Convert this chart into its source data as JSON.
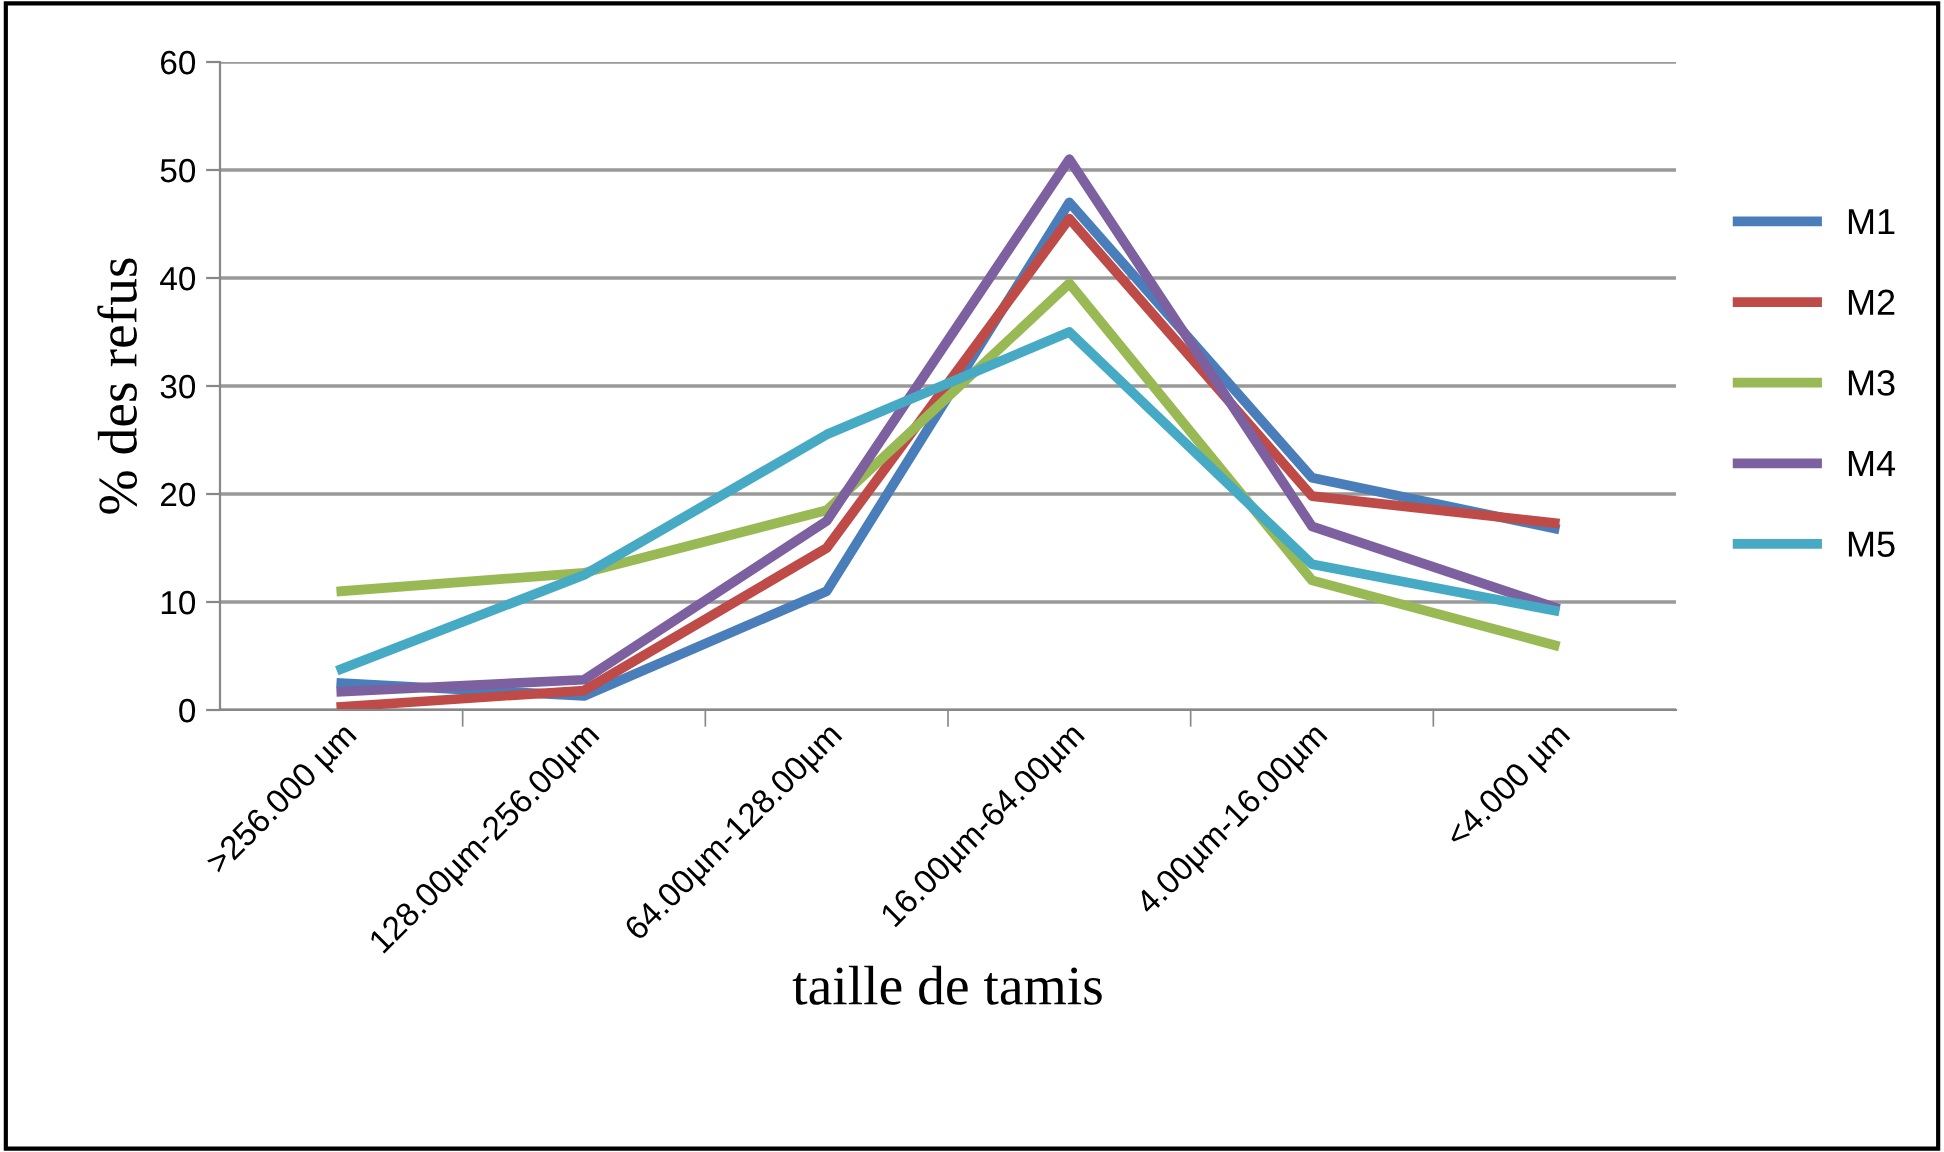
{
  "chart_data": {
    "type": "line",
    "xlabel": "taille de tamis",
    "ylabel": "% des refus",
    "categories": [
      ">256.000 µm",
      "128.00µm-256.00µm",
      "64.00µm-128.00µm",
      "16.00µm-64.00µm",
      "4.00µm-16.00µm",
      "<4.000 µm"
    ],
    "series": [
      {
        "name": "M1",
        "color": "#4a7ebb",
        "values": [
          2.5,
          1.3,
          11,
          47,
          21.5,
          16.8
        ]
      },
      {
        "name": "M2",
        "color": "#be4b48",
        "values": [
          0.3,
          1.8,
          15,
          45.5,
          19.8,
          17.3
        ]
      },
      {
        "name": "M3",
        "color": "#98b954",
        "values": [
          11,
          12.7,
          18.5,
          39.5,
          12,
          6
        ]
      },
      {
        "name": "M4",
        "color": "#7d60a0",
        "values": [
          1.7,
          2.8,
          17.5,
          51,
          17,
          9.5
        ]
      },
      {
        "name": "M5",
        "color": "#46aac5",
        "values": [
          3.8,
          12.5,
          25.5,
          35,
          13.5,
          9.2
        ]
      }
    ],
    "ylim": [
      0,
      60
    ],
    "yticks": [
      0,
      10,
      20,
      30,
      40,
      50,
      60
    ],
    "grid": "y",
    "legend": "right",
    "marker": "none",
    "line_style": "solid"
  }
}
